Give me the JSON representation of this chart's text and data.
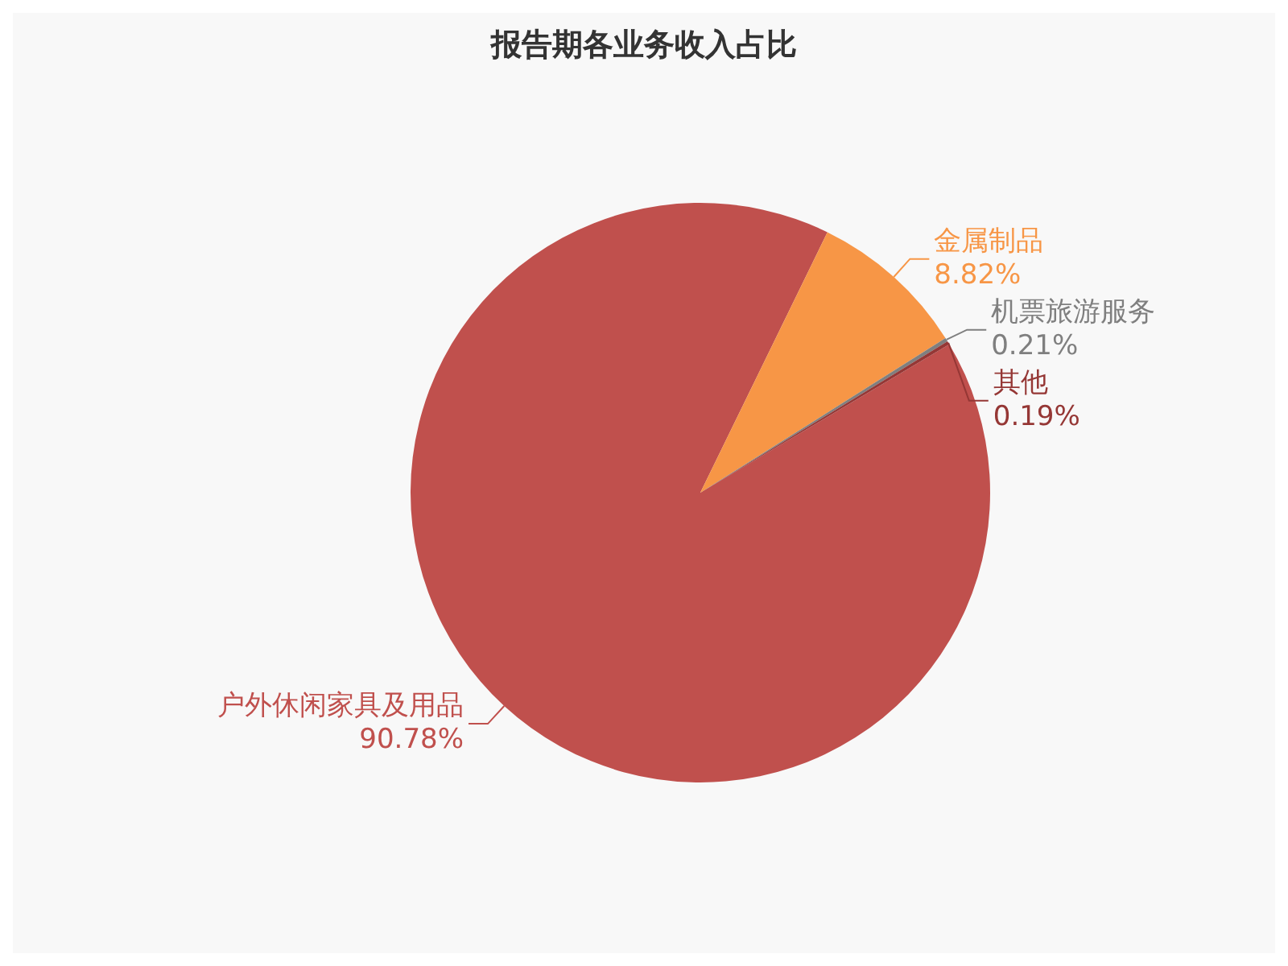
{
  "chart_data": {
    "type": "pie",
    "title": "报告期各业务收入占比",
    "categories": [
      "户外休闲家具及用品",
      "金属制品",
      "机票旅游服务",
      "其他"
    ],
    "values": [
      90.78,
      8.82,
      0.21,
      0.19
    ],
    "colors": [
      "#c0504d",
      "#f79646",
      "#7f7f7f",
      "#953735"
    ],
    "value_labels": [
      "90.78%",
      "8.82%",
      "0.21%",
      "0.19%"
    ],
    "legend": false
  }
}
